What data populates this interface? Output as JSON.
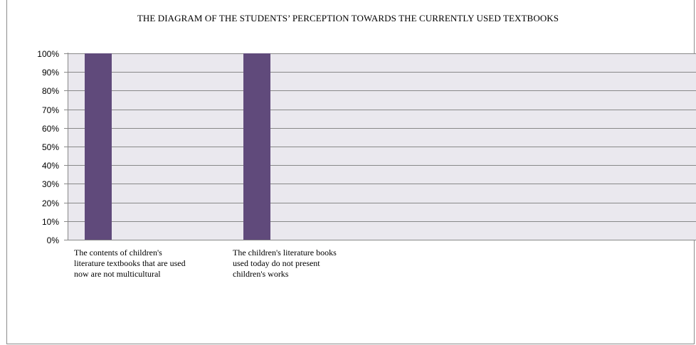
{
  "chart_data": {
    "type": "bar",
    "title": "THE DIAGRAM OF THE STUDENTS’ PERCEPTION TOWARDS THE CURRENTLY USED TEXTBOOKS",
    "categories": [
      "The contents of children's literature textbooks that are used now are not multicultural",
      "The children's literature books used today do not present children's works"
    ],
    "category_label_lines": [
      [
        "The contents of children's",
        "literature textbooks that are used",
        "now are not multicultural"
      ],
      [
        "The children's literature books",
        "used today do not present",
        "children's works"
      ]
    ],
    "values": [
      100,
      100
    ],
    "ylim": [
      0,
      100
    ],
    "yticks": [
      "0%",
      "10%",
      "20%",
      "30%",
      "40%",
      "50%",
      "60%",
      "70%",
      "80%",
      "90%",
      "100%"
    ],
    "xlabel": "",
    "ylabel": "",
    "grid": true,
    "colors": {
      "bar": "#604a7b",
      "plot_background": "#eae8ee",
      "grid": "#888888"
    }
  }
}
